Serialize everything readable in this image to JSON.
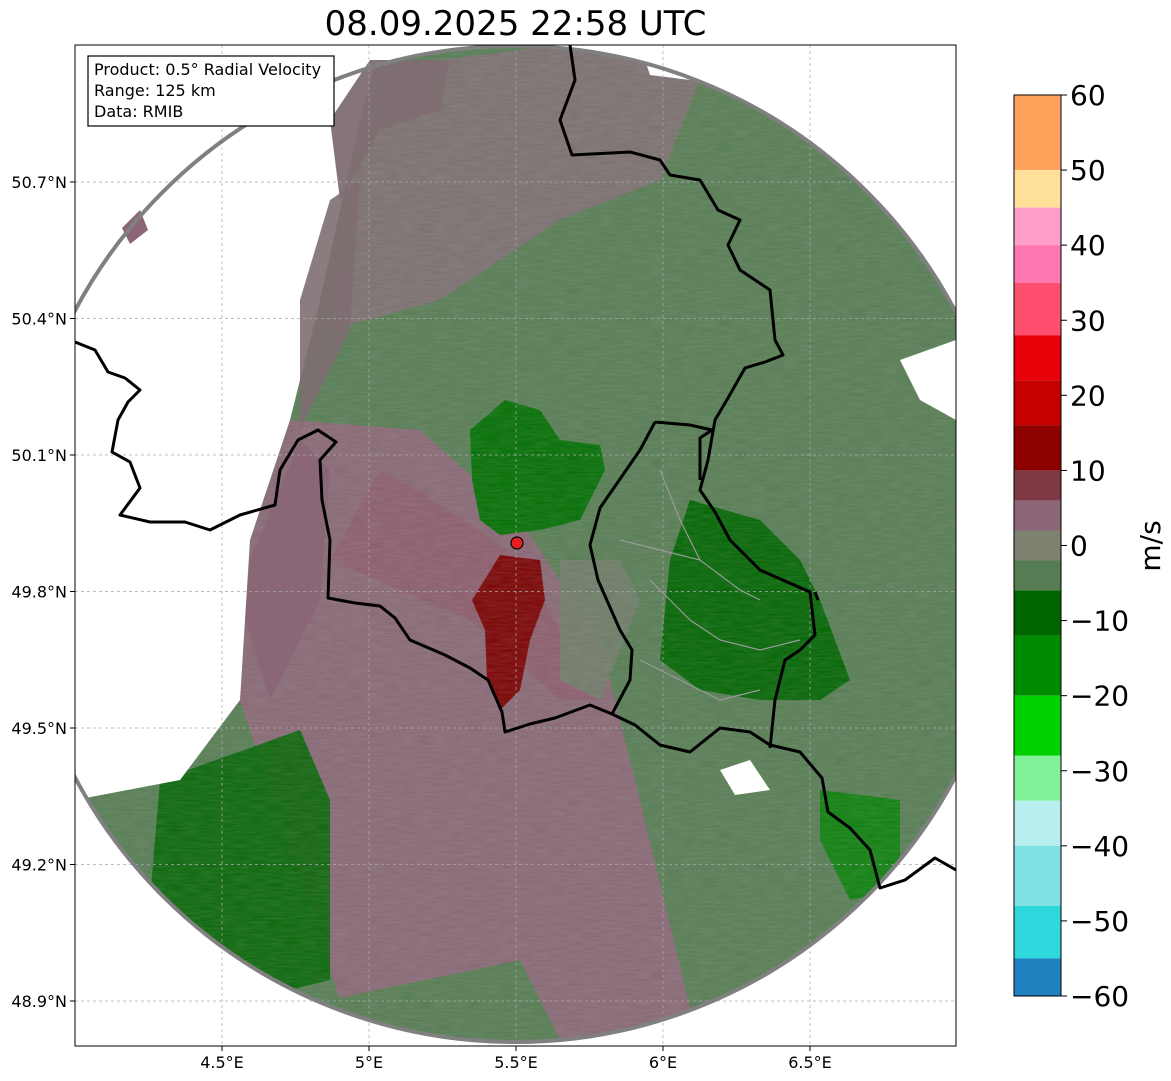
{
  "title": "08.09.2025 22:58 UTC",
  "info_box": {
    "lines": [
      "Product: 0.5° Radial Velocity",
      "Range: 125 km",
      "Data: RMIB"
    ]
  },
  "lon_ticks": [
    {
      "value": 4.5,
      "label": "4.5°E"
    },
    {
      "value": 5.0,
      "label": "5°E"
    },
    {
      "value": 5.5,
      "label": "5.5°E"
    },
    {
      "value": 6.0,
      "label": "6°E"
    },
    {
      "value": 6.5,
      "label": "6.5°E"
    }
  ],
  "lat_ticks": [
    {
      "value": 48.9,
      "label": "48.9°N"
    },
    {
      "value": 49.2,
      "label": "49.2°N"
    },
    {
      "value": 49.5,
      "label": "49.5°N"
    },
    {
      "value": 49.8,
      "label": "49.8°N"
    },
    {
      "value": 50.1,
      "label": "50.1°N"
    },
    {
      "value": 50.4,
      "label": "50.4°N"
    },
    {
      "value": 50.7,
      "label": "50.7°N"
    }
  ],
  "extent": {
    "lon_min": 4.0,
    "lon_max": 7.0,
    "lat_min": 48.8,
    "lat_max": 51.0
  },
  "radar_site": {
    "lon": 5.505,
    "lat": 49.914
  },
  "colorbar": {
    "label": "m/s",
    "min": -60,
    "max": 60,
    "ticks": [
      {
        "value": 60,
        "label": "60"
      },
      {
        "value": 50,
        "label": "50"
      },
      {
        "value": 40,
        "label": "40"
      },
      {
        "value": 30,
        "label": "30"
      },
      {
        "value": 20,
        "label": "20"
      },
      {
        "value": 10,
        "label": "10"
      },
      {
        "value": 0,
        "label": "0"
      },
      {
        "value": -10,
        "label": "−10"
      },
      {
        "value": -20,
        "label": "−20"
      },
      {
        "value": -30,
        "label": "−30"
      },
      {
        "value": -40,
        "label": "−40"
      },
      {
        "value": -50,
        "label": "−50"
      },
      {
        "value": -60,
        "label": "−60"
      }
    ],
    "stops": [
      {
        "from": 50,
        "to": 60,
        "color": "#ffa35c"
      },
      {
        "from": 45,
        "to": 50,
        "color": "#ffe09a"
      },
      {
        "from": 40,
        "to": 45,
        "color": "#ff9fc9"
      },
      {
        "from": 35,
        "to": 40,
        "color": "#ff77b0"
      },
      {
        "from": 28,
        "to": 35,
        "color": "#ff4f6e"
      },
      {
        "from": 22,
        "to": 28,
        "color": "#e80008"
      },
      {
        "from": 16,
        "to": 22,
        "color": "#c50000"
      },
      {
        "from": 10,
        "to": 16,
        "color": "#8c0000"
      },
      {
        "from": 6,
        "to": 10,
        "color": "#7f3945"
      },
      {
        "from": 2,
        "to": 6,
        "color": "#8a6676"
      },
      {
        "from": -2,
        "to": 2,
        "color": "#7d8270"
      },
      {
        "from": -6,
        "to": -2,
        "color": "#557c52"
      },
      {
        "from": -12,
        "to": -6,
        "color": "#006400"
      },
      {
        "from": -20,
        "to": -12,
        "color": "#008c00"
      },
      {
        "from": -28,
        "to": -20,
        "color": "#00d000"
      },
      {
        "from": -34,
        "to": -28,
        "color": "#7ff29a"
      },
      {
        "from": -40,
        "to": -34,
        "color": "#b9eef0"
      },
      {
        "from": -48,
        "to": -40,
        "color": "#7fe0e6"
      },
      {
        "from": -55,
        "to": -48,
        "color": "#2ed8dc"
      },
      {
        "from": -60,
        "to": -55,
        "color": "#2180c0"
      }
    ]
  },
  "colors": {
    "approaching_strong": "#006400",
    "approaching": "#4f7d4d",
    "neutral": "#777a70",
    "receding": "#8a6676",
    "receding_strong": "#7a0000",
    "range_ring": "#808080",
    "border": "#000000"
  }
}
